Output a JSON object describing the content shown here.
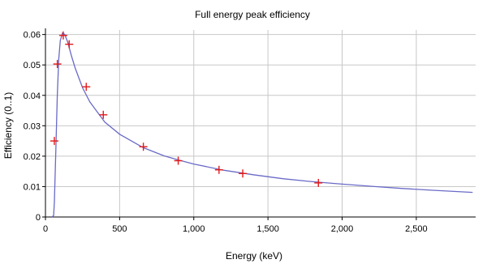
{
  "chart_data": {
    "type": "line",
    "title": "Full energy peak efficiency",
    "xlabel": "Energy (keV)",
    "ylabel": "Efficiency (0..1)",
    "xlim": [
      0,
      2900
    ],
    "ylim": [
      0,
      0.0615
    ],
    "x_ticks": [
      0,
      500,
      1000,
      1500,
      2000,
      2500
    ],
    "x_tick_labels": [
      "0",
      "500",
      "1,000",
      "1,500",
      "2,000",
      "2,500"
    ],
    "y_ticks": [
      0,
      0.01,
      0.02,
      0.03,
      0.04,
      0.05,
      0.06
    ],
    "y_tick_labels": [
      "0",
      "0.01",
      "0.02",
      "0.03",
      "0.04",
      "0.05",
      "0.06"
    ],
    "grid": true,
    "series": [
      {
        "type": "line",
        "color": "#6a6ac8",
        "x": [
          45,
          55,
          60,
          70,
          80,
          90,
          100,
          115,
          130,
          150,
          175,
          200,
          250,
          300,
          400,
          500,
          660,
          800,
          900,
          1000,
          1200,
          1400,
          1600,
          1800,
          2000,
          2200,
          2400,
          2600,
          2880
        ],
        "y": [
          0.0,
          0.0005,
          0.005,
          0.022,
          0.04,
          0.052,
          0.058,
          0.0605,
          0.06,
          0.0575,
          0.053,
          0.049,
          0.0425,
          0.0378,
          0.0312,
          0.0272,
          0.0228,
          0.0201,
          0.0187,
          0.0174,
          0.0154,
          0.0139,
          0.0126,
          0.0116,
          0.0108,
          0.0101,
          0.0094,
          0.0088,
          0.0081
        ]
      },
      {
        "type": "scatter",
        "marker": "plus",
        "color": "#e31a1a",
        "x": [
          60,
          80,
          120,
          160,
          275,
          390,
          660,
          895,
          1170,
          1330,
          1840
        ],
        "y": [
          0.025,
          0.0503,
          0.0597,
          0.0568,
          0.0428,
          0.0336,
          0.0231,
          0.0185,
          0.0155,
          0.0143,
          0.0112
        ]
      }
    ]
  }
}
